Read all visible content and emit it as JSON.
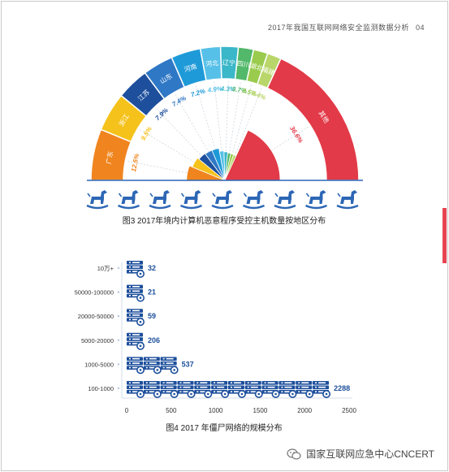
{
  "header": {
    "title": "2017年我国互联网网络安全监测数据分析",
    "page_number": "04"
  },
  "figure3": {
    "caption": "图3 2017年境内计算机恶意程序受控主机数量按地区分布",
    "chart_data": {
      "type": "pie",
      "title": "图3 2017年境内计算机恶意程序受控主机数量按地区分布",
      "categories": [
        "广东",
        "浙江",
        "江苏",
        "山东",
        "河南",
        "河北",
        "辽宁",
        "四川",
        "湖北",
        "福建",
        "其他"
      ],
      "labels": [
        "12.5%",
        "9.5%",
        "7.9%",
        "7.4%",
        "7.2%",
        "4.9%",
        "4.3%",
        "3.7%",
        "3.5%",
        "3.4%",
        "36.6%"
      ],
      "values": [
        12.5,
        9.5,
        7.9,
        7.4,
        7.2,
        4.9,
        4.3,
        3.7,
        3.5,
        3.4,
        36.6
      ],
      "colors": [
        "#f0851f",
        "#f5c21b",
        "#1d4f9c",
        "#2f78c6",
        "#1f9ad8",
        "#57c0e8",
        "#3ab7c9",
        "#52b86a",
        "#9acb4d",
        "#b9d66a",
        "#e23a48"
      ]
    }
  },
  "figure4": {
    "caption": "图4 2017 年僵尸网络的规模分布",
    "chart_data": {
      "type": "bar",
      "title": "图4 2017 年僵尸网络的规模分布",
      "categories": [
        "10万+",
        "50000-100000",
        "20000-50000",
        "5000-20000",
        "1000-5000",
        "100-1000"
      ],
      "values": [
        32,
        21,
        59,
        206,
        537,
        2288
      ],
      "xlim": [
        0,
        2500
      ],
      "xticks": [
        "0",
        "500",
        "1000",
        "1500",
        "2000",
        "2500"
      ],
      "value_color": "#1d4f9c"
    }
  },
  "watermark": {
    "text": "国家互联网应急中心CNCERT"
  },
  "icons": {
    "mascot": "rocking-horse-icon",
    "server": "server-icon",
    "wechat": "wechat-icon"
  }
}
